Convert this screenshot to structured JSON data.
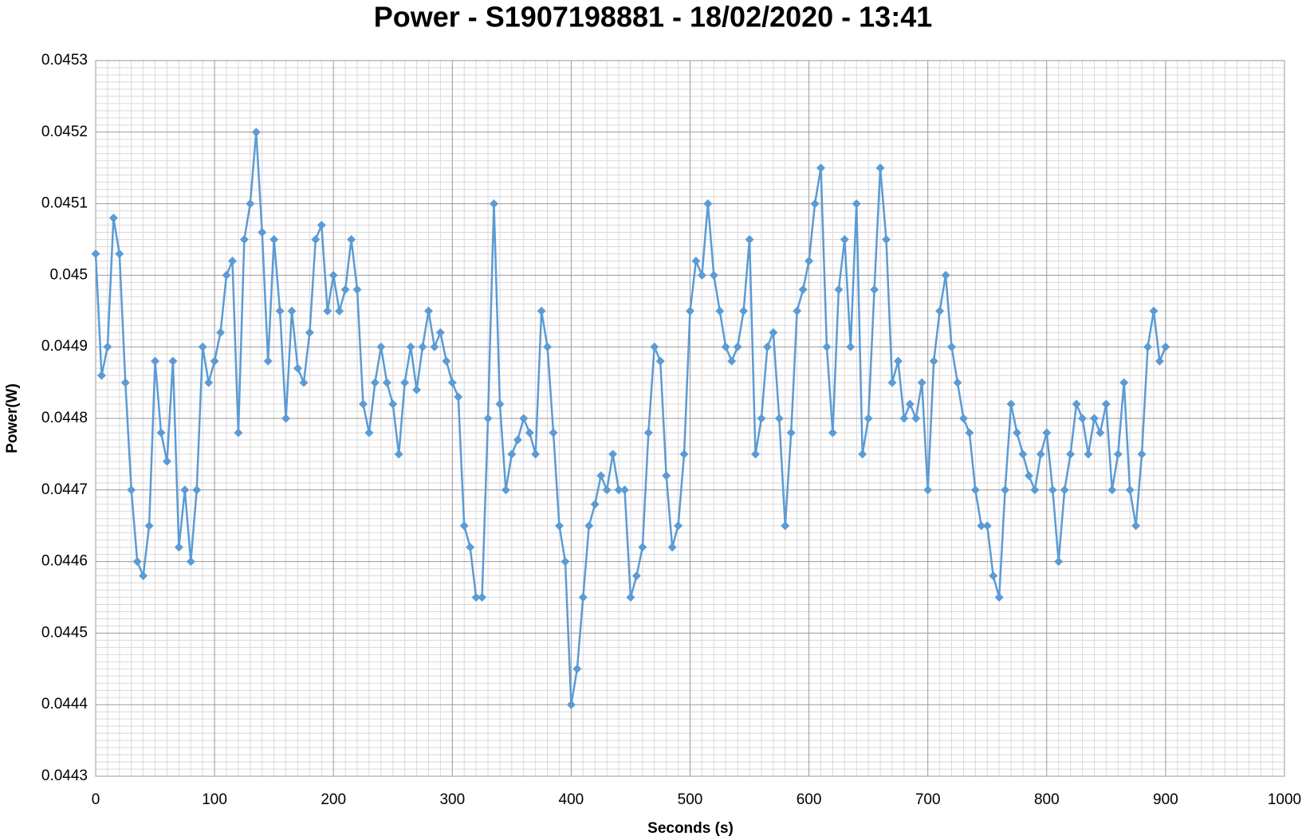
{
  "chart_data": {
    "type": "line",
    "title": "Power - S1907198881 - 18/02/2020 - 13:41",
    "x_label": "Seconds (s)",
    "y_label": "Power(W)",
    "xlim": [
      0,
      1000
    ],
    "xticks": [
      0,
      100,
      200,
      300,
      400,
      500,
      600,
      700,
      800,
      900,
      1000
    ],
    "ylim": [
      0.0443,
      0.0453
    ],
    "yticks": [
      0.0443,
      0.0444,
      0.0445,
      0.0446,
      0.0447,
      0.0448,
      0.0449,
      0.045,
      0.0451,
      0.0452,
      0.0453
    ],
    "grid": true,
    "minor_divisions": 10,
    "marker": "diamond",
    "x": [
      0,
      5,
      10,
      15,
      20,
      25,
      30,
      35,
      40,
      45,
      50,
      55,
      60,
      65,
      70,
      75,
      80,
      85,
      90,
      95,
      100,
      105,
      110,
      115,
      120,
      125,
      130,
      135,
      140,
      145,
      150,
      155,
      160,
      165,
      170,
      175,
      180,
      185,
      190,
      195,
      200,
      205,
      210,
      215,
      220,
      225,
      230,
      235,
      240,
      245,
      250,
      255,
      260,
      265,
      270,
      275,
      280,
      285,
      290,
      295,
      300,
      305,
      310,
      315,
      320,
      325,
      330,
      335,
      340,
      345,
      350,
      355,
      360,
      365,
      370,
      375,
      380,
      385,
      390,
      395,
      400,
      405,
      410,
      415,
      420,
      425,
      430,
      435,
      440,
      445,
      450,
      455,
      460,
      465,
      470,
      475,
      480,
      485,
      490,
      495,
      500,
      505,
      510,
      515,
      520,
      525,
      530,
      535,
      540,
      545,
      550,
      555,
      560,
      565,
      570,
      575,
      580,
      585,
      590,
      595,
      600,
      605,
      610,
      615,
      620,
      625,
      630,
      635,
      640,
      645,
      650,
      655,
      660,
      665,
      670,
      675,
      680,
      685,
      690,
      695,
      700,
      705,
      710,
      715,
      720,
      725,
      730,
      735,
      740,
      745,
      750,
      755,
      760,
      765,
      770,
      775,
      780,
      785,
      790,
      795,
      800,
      805,
      810,
      815,
      820,
      825,
      830,
      835,
      840,
      845,
      850,
      855,
      860,
      865,
      870,
      875,
      880,
      885,
      890,
      895,
      900
    ],
    "series": [
      {
        "name": "Power(W)",
        "color": "#5b9bd5",
        "values": [
          0.04503,
          0.04486,
          0.0449,
          0.04508,
          0.04503,
          0.04485,
          0.0447,
          0.0446,
          0.04458,
          0.04465,
          0.04488,
          0.04478,
          0.04474,
          0.04488,
          0.04462,
          0.0447,
          0.0446,
          0.0447,
          0.0449,
          0.04485,
          0.04488,
          0.04492,
          0.045,
          0.04502,
          0.04478,
          0.04505,
          0.0451,
          0.0452,
          0.04506,
          0.04488,
          0.04505,
          0.04495,
          0.0448,
          0.04495,
          0.04487,
          0.04485,
          0.04492,
          0.04505,
          0.04507,
          0.04495,
          0.045,
          0.04495,
          0.04498,
          0.04505,
          0.04498,
          0.04482,
          0.04478,
          0.04485,
          0.0449,
          0.04485,
          0.04482,
          0.04475,
          0.04485,
          0.0449,
          0.04484,
          0.0449,
          0.04495,
          0.0449,
          0.04492,
          0.04488,
          0.04485,
          0.04483,
          0.04465,
          0.04462,
          0.04455,
          0.04455,
          0.0448,
          0.0451,
          0.04482,
          0.0447,
          0.04475,
          0.04477,
          0.0448,
          0.04478,
          0.04475,
          0.04495,
          0.0449,
          0.04478,
          0.04465,
          0.0446,
          0.0444,
          0.04445,
          0.04455,
          0.04465,
          0.04468,
          0.04472,
          0.0447,
          0.04475,
          0.0447,
          0.0447,
          0.04455,
          0.04458,
          0.04462,
          0.04478,
          0.0449,
          0.04488,
          0.04472,
          0.04462,
          0.04465,
          0.04475,
          0.04495,
          0.04502,
          0.045,
          0.0451,
          0.045,
          0.04495,
          0.0449,
          0.04488,
          0.0449,
          0.04495,
          0.04505,
          0.04475,
          0.0448,
          0.0449,
          0.04492,
          0.0448,
          0.04465,
          0.04478,
          0.04495,
          0.04498,
          0.04502,
          0.0451,
          0.04515,
          0.0449,
          0.04478,
          0.04498,
          0.04505,
          0.0449,
          0.0451,
          0.04475,
          0.0448,
          0.04498,
          0.04515,
          0.04505,
          0.04485,
          0.04488,
          0.0448,
          0.04482,
          0.0448,
          0.04485,
          0.0447,
          0.04488,
          0.04495,
          0.045,
          0.0449,
          0.04485,
          0.0448,
          0.04478,
          0.0447,
          0.04465,
          0.04465,
          0.04458,
          0.04455,
          0.0447,
          0.04482,
          0.04478,
          0.04475,
          0.04472,
          0.0447,
          0.04475,
          0.04478,
          0.0447,
          0.0446,
          0.0447,
          0.04475,
          0.04482,
          0.0448,
          0.04475,
          0.0448,
          0.04478,
          0.04482,
          0.0447,
          0.04475,
          0.04485,
          0.0447,
          0.04465,
          0.04475,
          0.0449,
          0.04495,
          0.04488,
          0.0449
        ]
      }
    ]
  }
}
